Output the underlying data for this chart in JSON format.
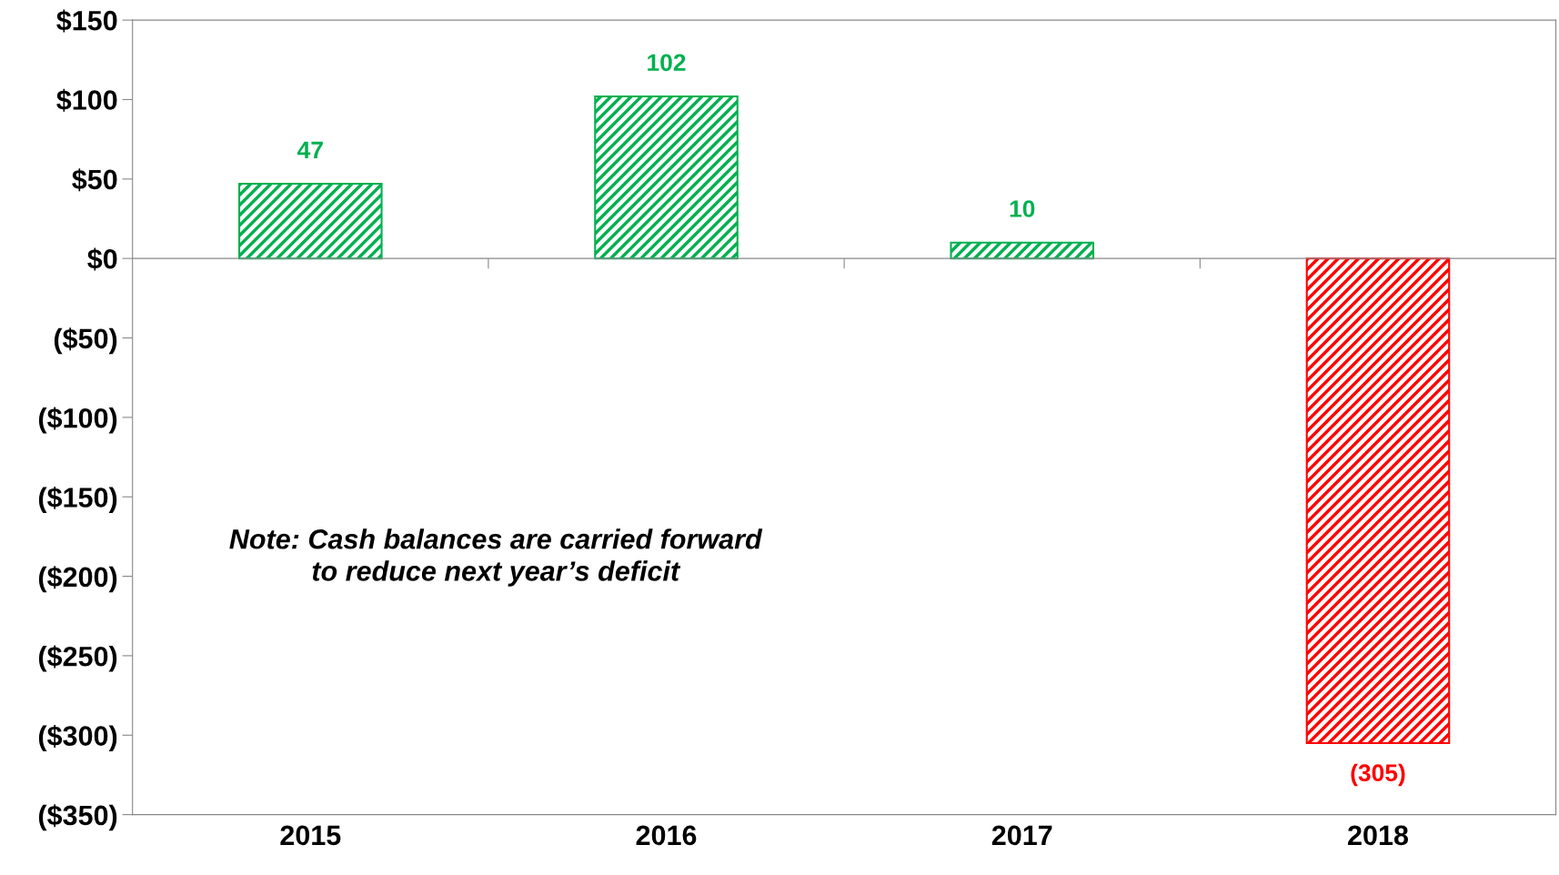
{
  "chart_data": {
    "type": "bar",
    "categories": [
      "2015",
      "2016",
      "2017",
      "2018"
    ],
    "values": [
      47,
      102,
      10,
      -305
    ],
    "colors": [
      "#00b050",
      "#00b050",
      "#00b050",
      "#ff0000"
    ],
    "ylim": [
      -350,
      150
    ],
    "yticks": [
      {
        "value": 150,
        "label": "$150"
      },
      {
        "value": 100,
        "label": "$100"
      },
      {
        "value": 50,
        "label": "$50"
      },
      {
        "value": 0,
        "label": "$0"
      },
      {
        "value": -50,
        "label": "($50)"
      },
      {
        "value": -100,
        "label": "($100)"
      },
      {
        "value": -150,
        "label": "($150)"
      },
      {
        "value": -200,
        "label": "($200)"
      },
      {
        "value": -250,
        "label": "($250)"
      },
      {
        "value": -300,
        "label": "($300)"
      },
      {
        "value": -350,
        "label": "($350)"
      }
    ],
    "value_labels": [
      "47",
      "102",
      "10",
      "(305)"
    ],
    "annotations": [
      "Note: Cash balances are carried forward\nto reduce next year’s deficit"
    ],
    "legend": false
  }
}
